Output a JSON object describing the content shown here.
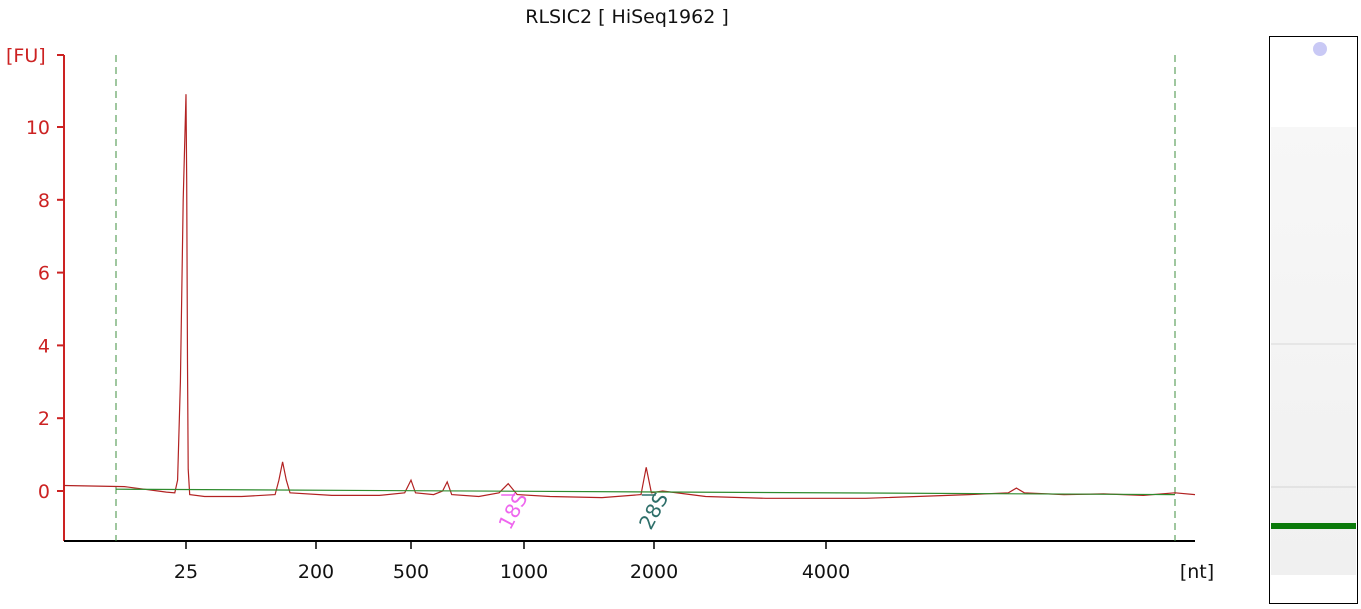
{
  "chart_data": {
    "type": "line",
    "title": "RLSIC2  [ HiSeq1962 ]",
    "ylabel": "[FU]",
    "xlabel": "[nt]",
    "ylim": [
      -1.4,
      12
    ],
    "y_ticks": [
      0,
      2,
      4,
      6,
      8,
      10
    ],
    "x_ticks": [
      {
        "label": "25",
        "pos": 25
      },
      {
        "label": "200",
        "pos": 200
      },
      {
        "label": "500",
        "pos": 500
      },
      {
        "label": "1000",
        "pos": 1000
      },
      {
        "label": "2000",
        "pos": 2000
      },
      {
        "label": "4000",
        "pos": 4000
      }
    ],
    "markers": [
      {
        "label": "18S",
        "x": 930,
        "color": "#ee66ee"
      },
      {
        "label": "28S",
        "x": 1960,
        "color": "#2e6f6a"
      }
    ],
    "series": [
      {
        "color": "#b22222",
        "points": [
          [
            -5,
            0.15
          ],
          [
            3,
            0.12
          ],
          [
            10,
            0.05
          ],
          [
            15,
            0.0
          ],
          [
            18,
            -0.03
          ],
          [
            21,
            -0.05
          ],
          [
            22,
            0.3
          ],
          [
            23,
            3.0
          ],
          [
            24,
            8.0
          ],
          [
            25,
            10.9
          ],
          [
            26,
            8.5
          ],
          [
            27,
            3.5
          ],
          [
            28,
            0.6
          ],
          [
            30,
            -0.1
          ],
          [
            50,
            -0.15
          ],
          [
            100,
            -0.15
          ],
          [
            145,
            -0.1
          ],
          [
            150,
            0.3
          ],
          [
            155,
            0.8
          ],
          [
            160,
            0.3
          ],
          [
            165,
            -0.05
          ],
          [
            250,
            -0.12
          ],
          [
            400,
            -0.12
          ],
          [
            480,
            -0.05
          ],
          [
            500,
            0.3
          ],
          [
            520,
            -0.05
          ],
          [
            600,
            -0.1
          ],
          [
            640,
            0.0
          ],
          [
            660,
            0.25
          ],
          [
            680,
            -0.1
          ],
          [
            800,
            -0.15
          ],
          [
            890,
            -0.05
          ],
          [
            930,
            0.2
          ],
          [
            970,
            -0.1
          ],
          [
            1200,
            -0.15
          ],
          [
            1600,
            -0.18
          ],
          [
            1900,
            -0.1
          ],
          [
            1940,
            0.65
          ],
          [
            1980,
            -0.05
          ],
          [
            2100,
            0.0
          ],
          [
            2600,
            -0.15
          ],
          [
            3300,
            -0.2
          ],
          [
            4500,
            -0.2
          ],
          [
            5800,
            -0.1
          ],
          [
            6300,
            -0.05
          ],
          [
            6400,
            0.08
          ],
          [
            6500,
            -0.05
          ],
          [
            7000,
            -0.1
          ],
          [
            7500,
            -0.08
          ],
          [
            8000,
            -0.12
          ],
          [
            8400,
            -0.05
          ],
          [
            8600,
            -0.1
          ]
        ]
      },
      {
        "color": "#2e8b2e",
        "points": [
          [
            0,
            0.05
          ],
          [
            8400,
            -0.1
          ]
        ]
      }
    ],
    "boundary_lines": [
      0,
      8400
    ],
    "gel_lane": {
      "lower_marker_band": true,
      "marker_color": "#0a7a0a"
    }
  }
}
